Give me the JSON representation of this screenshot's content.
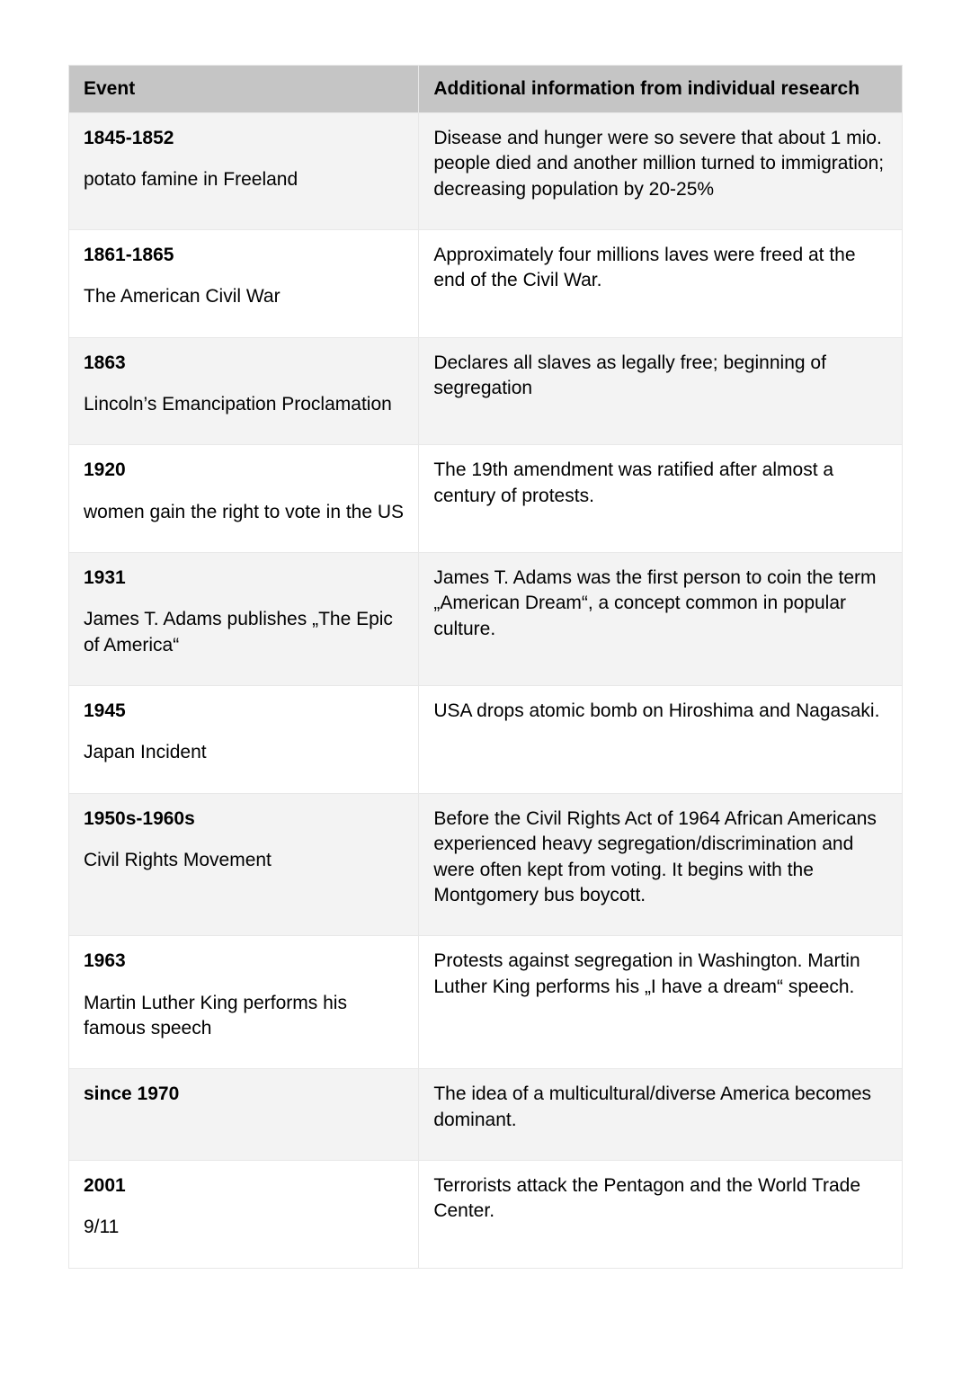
{
  "table": {
    "columns": [
      "Event",
      "Additional information from individual research"
    ],
    "header_bg": "#c5c5c5",
    "row_alt_bg": "#f3f3f3",
    "row_bg": "#ffffff",
    "border_color": "#e8e8e8",
    "font_size": 21,
    "rows": [
      {
        "date": "1845-1852",
        "event": "potato famine in Freeland",
        "info": "Disease and hunger were so severe that about 1 mio. people died and another million turned to immigration; decreasing population by 20-25%"
      },
      {
        "date": "1861-1865",
        "event": "The American Civil War",
        "info": "Approximately four millions laves were freed at the end of the Civil War."
      },
      {
        "date": "1863",
        "event": "Lincoln’s Emancipation Proclamation",
        "info": "Declares all slaves as legally free; beginning of segregation"
      },
      {
        "date": "1920",
        "event": "women gain the right to vote in the US",
        "info": "The 19th amendment was ratified after almost a century of protests."
      },
      {
        "date": "1931",
        "event": "James T. Adams publishes „The Epic of America“",
        "info": "James T. Adams was the first person to coin the term „American Dream“, a concept common in popular culture."
      },
      {
        "date": "1945",
        "event": "Japan Incident",
        "info": "USA drops atomic bomb on Hiroshima and Nagasaki."
      },
      {
        "date": "1950s-1960s",
        "event": "Civil Rights Movement",
        "info": "Before the Civil Rights Act of 1964 African Americans experienced heavy segregation/discrimination and were often kept from voting. It begins with the Montgomery bus boycott."
      },
      {
        "date": "1963",
        "event": "Martin Luther King performs his famous speech",
        "info": "Protests against segregation in Washington. Martin Luther King performs his „I have a dream“ speech."
      },
      {
        "date": "since 1970",
        "event": "",
        "info": "The idea of a multicultural/diverse America becomes dominant."
      },
      {
        "date": "2001",
        "event": "9/11",
        "info": "Terrorists attack the Pentagon and the World Trade Center."
      }
    ]
  }
}
